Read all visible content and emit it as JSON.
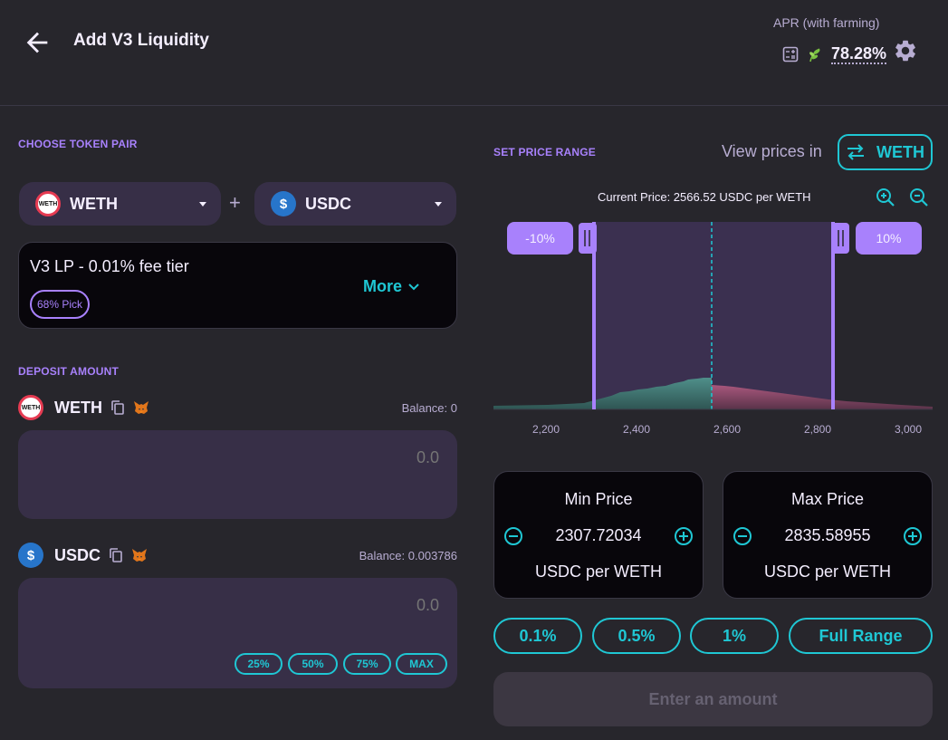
{
  "header": {
    "title": "Add V3 Liquidity",
    "apr_label": "APR (with farming)",
    "apr_value": "78.28%",
    "icons": [
      "back-arrow-icon",
      "calculator-icon",
      "farm-leaf-icon",
      "gear-icon"
    ]
  },
  "token_pair": {
    "label": "CHOOSE TOKEN PAIR",
    "token_a": "WETH",
    "token_b": "USDC",
    "plus": "+"
  },
  "fee_tier": {
    "title": "V3 LP - 0.01% fee tier",
    "badge": "68% Pick",
    "more_label": "More"
  },
  "deposit": {
    "label": "DEPOSIT AMOUNT",
    "token_a": {
      "name": "WETH",
      "balance": "Balance: 0",
      "value": "0.0"
    },
    "token_b": {
      "name": "USDC",
      "balance": "Balance: 0.003786",
      "value": "0.0"
    },
    "percent_buttons": [
      "25%",
      "50%",
      "75%",
      "MAX"
    ]
  },
  "price_range": {
    "label": "SET PRICE RANGE",
    "view_prices_label": "View prices in",
    "view_token": "WETH",
    "current_price": "Current Price: 2566.52 USDC per WETH",
    "lower_tag": "-10%",
    "upper_tag": "10%",
    "axis_ticks": [
      "2,200",
      "2,400",
      "2,600",
      "2,800",
      "3,000"
    ],
    "min": {
      "title": "Min Price",
      "value": "2307.72034",
      "unit": "USDC per WETH"
    },
    "max": {
      "title": "Max Price",
      "value": "2835.58955",
      "unit": "USDC per WETH"
    },
    "range_buttons": [
      "0.1%",
      "0.5%",
      "1%",
      "Full Range"
    ],
    "submit_label": "Enter an amount"
  },
  "colors": {
    "accent_purple": "#a881fc",
    "accent_cyan": "#1fc7d4",
    "bg": "#27262c",
    "input_bg": "#372f47"
  }
}
